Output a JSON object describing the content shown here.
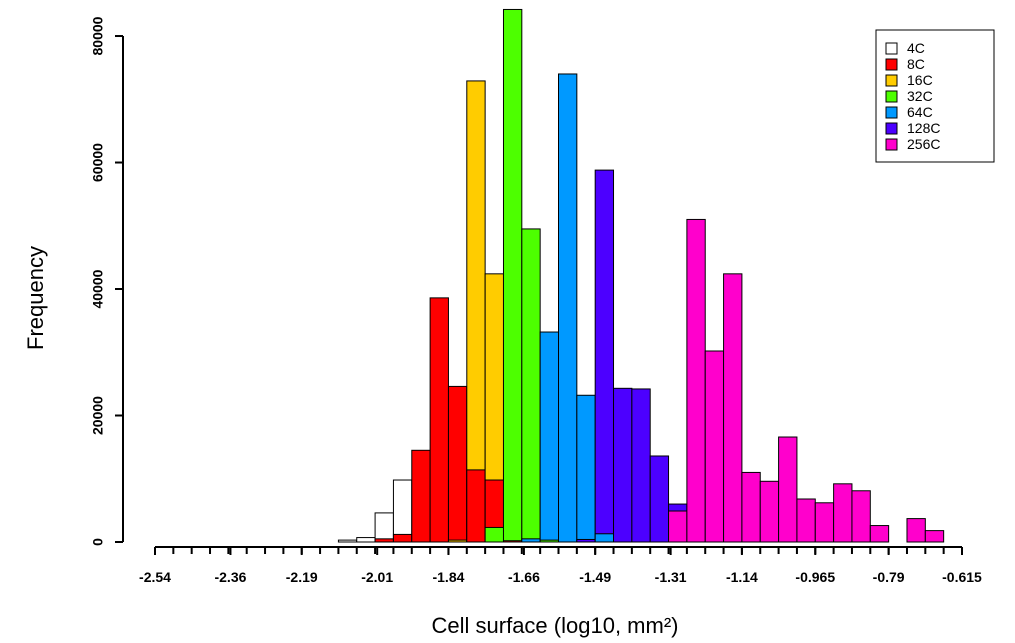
{
  "chart_data": {
    "type": "histogram",
    "x_label": "Cell surface (log10, mm²)",
    "y_label": "Frequency",
    "bins": [
      -2.54,
      -2.49625,
      -2.4525,
      -2.40875,
      -2.365,
      -2.32125,
      -2.2775,
      -2.23375,
      -2.19,
      -2.14625,
      -2.1025,
      -2.05875,
      -2.015,
      -1.97125,
      -1.9275,
      -1.88375,
      -1.84,
      -1.79625,
      -1.7525,
      -1.70875,
      -1.665,
      -1.62125,
      -1.5775,
      -1.53375,
      -1.49,
      -1.44625,
      -1.4025,
      -1.35875,
      -1.315,
      -1.27125,
      -1.2275,
      -1.18375,
      -1.14,
      -1.09625,
      -1.0525,
      -1.00875,
      -0.965,
      -0.92125,
      -0.8775,
      -0.83375,
      -0.79,
      -0.74625,
      -0.7025,
      -0.65875,
      -0.615
    ],
    "series": [
      {
        "name": "4C",
        "color": "#ffffff",
        "values": [
          0,
          0,
          0,
          0,
          0,
          0,
          0,
          0,
          0,
          0,
          300,
          700,
          4600,
          9800,
          0,
          0,
          0,
          0,
          0,
          0,
          0,
          0,
          0,
          0,
          0,
          0,
          0,
          0,
          0,
          0,
          0,
          0,
          0,
          0,
          0,
          0,
          0,
          0,
          0,
          0,
          0,
          0,
          0,
          0
        ]
      },
      {
        "name": "8C",
        "color": "#ff0000",
        "values": [
          0,
          0,
          0,
          0,
          0,
          0,
          0,
          0,
          0,
          0,
          0,
          0,
          500,
          1200,
          14500,
          38600,
          24600,
          11400,
          9800,
          200,
          0,
          0,
          0,
          0,
          0,
          0,
          0,
          0,
          0,
          0,
          0,
          0,
          0,
          0,
          0,
          0,
          0,
          0,
          0,
          0,
          0,
          0,
          0,
          0
        ]
      },
      {
        "name": "16C",
        "color": "#ffcc00",
        "values": [
          0,
          0,
          0,
          0,
          0,
          0,
          0,
          0,
          0,
          0,
          0,
          0,
          0,
          0,
          0,
          0,
          300,
          72900,
          42400,
          0,
          0,
          0,
          0,
          0,
          0,
          0,
          0,
          0,
          0,
          0,
          0,
          0,
          0,
          0,
          0,
          0,
          0,
          0,
          0,
          0,
          0,
          0,
          0,
          0
        ]
      },
      {
        "name": "32C",
        "color": "#4dff00",
        "values": [
          0,
          0,
          0,
          0,
          0,
          0,
          0,
          0,
          0,
          0,
          0,
          0,
          0,
          0,
          0,
          0,
          0,
          0,
          2300,
          84200,
          49500,
          300,
          0,
          0,
          0,
          0,
          0,
          0,
          0,
          0,
          0,
          0,
          0,
          0,
          0,
          0,
          0,
          0,
          0,
          0,
          0,
          0,
          0,
          0
        ]
      },
      {
        "name": "64C",
        "color": "#0099ff",
        "values": [
          0,
          0,
          0,
          0,
          0,
          0,
          0,
          0,
          0,
          0,
          0,
          0,
          0,
          0,
          0,
          0,
          0,
          0,
          0,
          0,
          500,
          33200,
          74000,
          23200,
          1300,
          0,
          0,
          0,
          0,
          0,
          0,
          0,
          0,
          0,
          0,
          0,
          0,
          0,
          0,
          0,
          0,
          0,
          0,
          0
        ]
      },
      {
        "name": "128C",
        "color": "#4c00ff",
        "values": [
          0,
          0,
          0,
          0,
          0,
          0,
          0,
          0,
          0,
          0,
          0,
          0,
          0,
          0,
          0,
          0,
          0,
          0,
          0,
          0,
          0,
          0,
          0,
          400,
          58800,
          24300,
          24200,
          13600,
          6000,
          0,
          0,
          0,
          0,
          0,
          0,
          0,
          0,
          0,
          0,
          0,
          0,
          0,
          0,
          0
        ]
      },
      {
        "name": "256C",
        "color": "#ff00cc",
        "values": [
          0,
          0,
          0,
          0,
          0,
          0,
          0,
          0,
          0,
          0,
          0,
          0,
          0,
          0,
          0,
          0,
          0,
          0,
          0,
          0,
          0,
          0,
          0,
          0,
          0,
          0,
          0,
          0,
          4900,
          51000,
          30200,
          42400,
          11000,
          9600,
          16600,
          6800,
          6200,
          9200,
          8100,
          2600,
          0,
          3700,
          1800,
          0
        ]
      }
    ],
    "xlim": [
      -2.54,
      -0.615
    ],
    "xticks": [
      -2.54,
      -2.36,
      -2.19,
      -2.01,
      -1.84,
      -1.66,
      -1.49,
      -1.31,
      -1.14,
      -0.965,
      -0.79,
      -0.615
    ],
    "ylim": [
      0,
      85000
    ],
    "yticks": [
      0,
      20000,
      40000,
      60000,
      80000
    ],
    "legend": "top-right"
  }
}
